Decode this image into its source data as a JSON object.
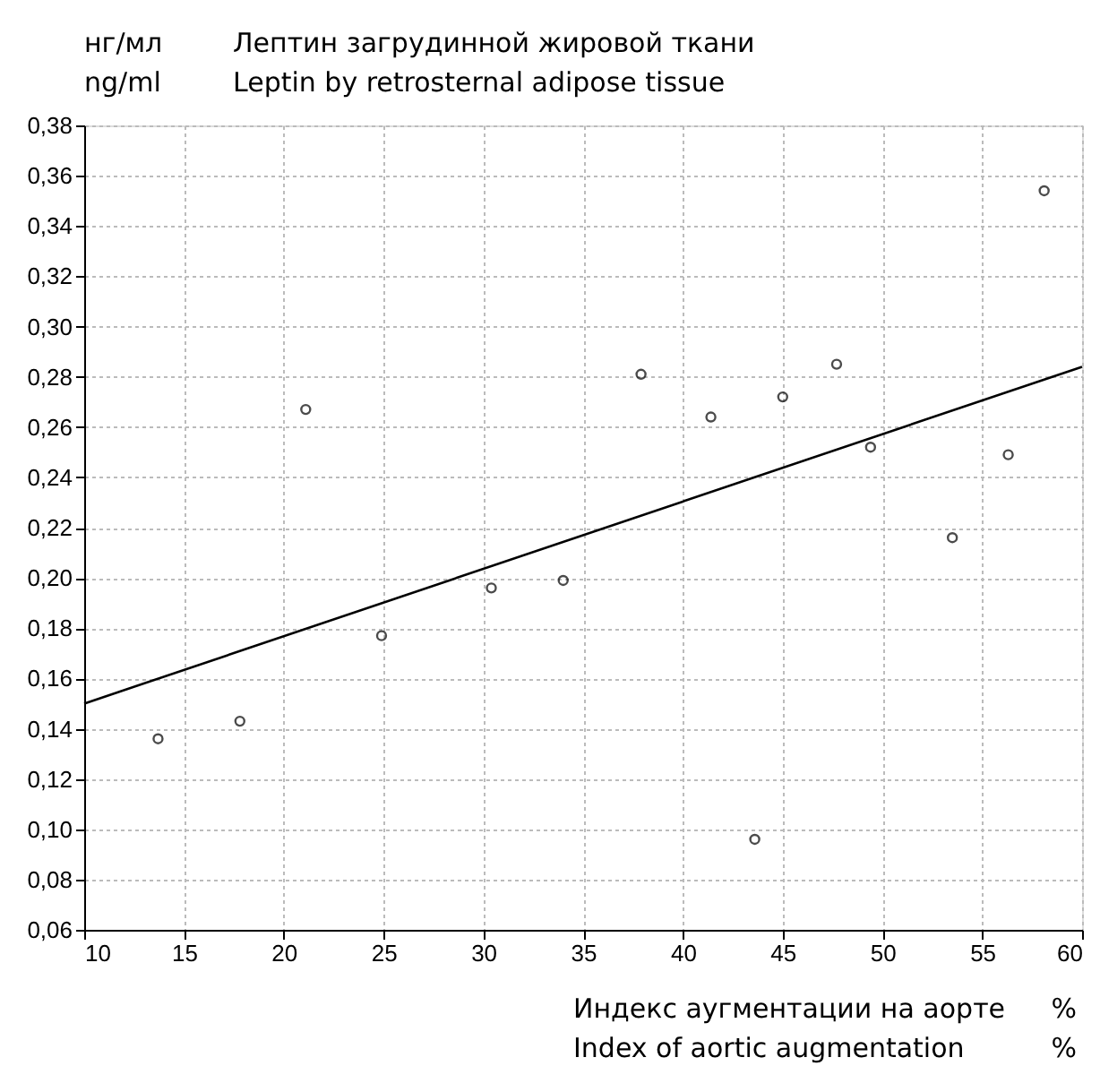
{
  "chart_data": {
    "type": "scatter",
    "title": "Лептин загрудинной жировой ткани\nLeptin by retrosternal adipose tissue",
    "ylabel": "нг/мл\nng/ml",
    "xlabel": "Индекс аугментации на аорте\nIndex of aortic augmentation",
    "annotations": [
      "%",
      "%"
    ],
    "series": [
      {
        "type": "scatter",
        "color": "#000000",
        "marker": "circle",
        "x": [
          13.7,
          17.8,
          21.1,
          24.9,
          30.4,
          34.0,
          37.9,
          41.4,
          43.6,
          45.0,
          47.7,
          49.4,
          53.5,
          56.3,
          58.1
        ],
        "values": [
          0.136,
          0.143,
          0.267,
          0.177,
          0.196,
          0.199,
          0.281,
          0.264,
          0.096,
          0.272,
          0.285,
          0.252,
          0.216,
          0.249,
          0.354
        ]
      },
      {
        "type": "line",
        "color": "#000000",
        "line_style": "solid",
        "x": [
          10,
          60
        ],
        "values": [
          0.15,
          0.284
        ]
      }
    ],
    "xlim": [
      10,
      60
    ],
    "xticks": [
      10,
      15,
      20,
      25,
      30,
      35,
      40,
      45,
      50,
      55,
      60
    ],
    "ylim": [
      0.06,
      0.38
    ],
    "yticks": [
      {
        "value": 0.06,
        "label": "0,06"
      },
      {
        "value": 0.08,
        "label": "0,08"
      },
      {
        "value": 0.1,
        "label": "0,10"
      },
      {
        "value": 0.12,
        "label": "0,12"
      },
      {
        "value": 0.14,
        "label": "0,14"
      },
      {
        "value": 0.16,
        "label": "0,16"
      },
      {
        "value": 0.18,
        "label": "0,18"
      },
      {
        "value": 0.2,
        "label": "0,20"
      },
      {
        "value": 0.22,
        "label": "0,22"
      },
      {
        "value": 0.24,
        "label": "0,24"
      },
      {
        "value": 0.26,
        "label": "0,26"
      },
      {
        "value": 0.28,
        "label": "0,28"
      },
      {
        "value": 0.3,
        "label": "0,30"
      },
      {
        "value": 0.32,
        "label": "0,32"
      },
      {
        "value": 0.34,
        "label": "0,34"
      },
      {
        "value": 0.36,
        "label": "0,36"
      },
      {
        "value": 0.38,
        "label": "0,38"
      }
    ],
    "grid": true
  }
}
